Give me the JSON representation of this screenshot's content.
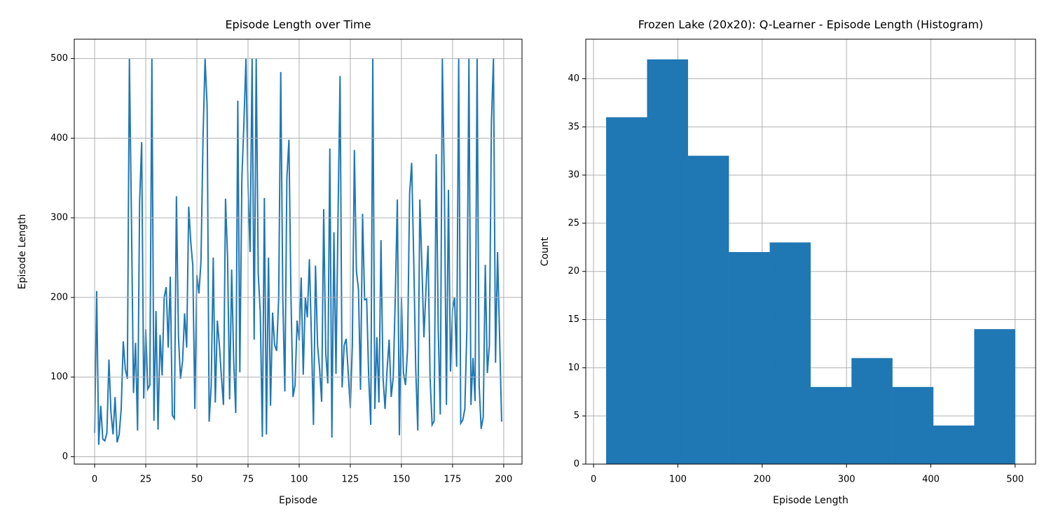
{
  "chart_data": [
    {
      "type": "line",
      "title": "Episode Length over Time",
      "x_label": "Episode",
      "y_label": "Episode Length",
      "color": "#1f77b4",
      "grid": true,
      "x": [
        0,
        1,
        2,
        3,
        4,
        5,
        6,
        7,
        8,
        9,
        10,
        11,
        12,
        13,
        14,
        15,
        16,
        17,
        18,
        19,
        20,
        21,
        22,
        23,
        24,
        25,
        26,
        27,
        28,
        29,
        30,
        31,
        32,
        33,
        34,
        35,
        36,
        37,
        38,
        39,
        40,
        41,
        42,
        43,
        44,
        45,
        46,
        47,
        48,
        49,
        50,
        51,
        52,
        53,
        54,
        55,
        56,
        57,
        58,
        59,
        60,
        61,
        62,
        63,
        64,
        65,
        66,
        67,
        68,
        69,
        70,
        71,
        72,
        73,
        74,
        75,
        76,
        77,
        78,
        79,
        80,
        81,
        82,
        83,
        84,
        85,
        86,
        87,
        88,
        89,
        90,
        91,
        92,
        93,
        94,
        95,
        96,
        97,
        98,
        99,
        100,
        101,
        102,
        103,
        104,
        105,
        106,
        107,
        108,
        109,
        110,
        111,
        112,
        113,
        114,
        115,
        116,
        117,
        118,
        119,
        120,
        121,
        122,
        123,
        124,
        125,
        126,
        127,
        128,
        129,
        130,
        131,
        132,
        133,
        134,
        135,
        136,
        137,
        138,
        139,
        140,
        141,
        142,
        143,
        144,
        145,
        146,
        147,
        148,
        149,
        150,
        151,
        152,
        153,
        154,
        155,
        156,
        157,
        158,
        159,
        160,
        161,
        162,
        163,
        164,
        165,
        166,
        167,
        168,
        169,
        170,
        171,
        172,
        173,
        174,
        175,
        176,
        177,
        178,
        179,
        180,
        181,
        182,
        183,
        184,
        185,
        186,
        187,
        188,
        189,
        190,
        191,
        192,
        193,
        194,
        195,
        196,
        197,
        198,
        199
      ],
      "values": [
        30,
        208,
        15,
        64,
        22,
        20,
        30,
        122,
        55,
        28,
        75,
        18,
        28,
        60,
        145,
        110,
        98,
        500,
        300,
        80,
        143,
        33,
        320,
        395,
        73,
        160,
        85,
        90,
        500,
        45,
        183,
        34,
        153,
        102,
        200,
        213,
        137,
        226,
        52,
        48,
        327,
        150,
        98,
        120,
        180,
        137,
        314,
        270,
        240,
        60,
        228,
        205,
        245,
        400,
        500,
        440,
        44,
        90,
        250,
        68,
        171,
        140,
        100,
        65,
        324,
        250,
        72,
        235,
        120,
        55,
        447,
        106,
        350,
        420,
        500,
        340,
        257,
        500,
        147,
        500,
        230,
        180,
        25,
        325,
        28,
        250,
        64,
        181,
        140,
        133,
        200,
        483,
        200,
        82,
        350,
        398,
        200,
        75,
        90,
        171,
        146,
        225,
        103,
        200,
        175,
        248,
        150,
        40,
        240,
        140,
        110,
        69,
        311,
        130,
        92,
        387,
        24,
        282,
        104,
        300,
        478,
        87,
        140,
        148,
        105,
        61,
        140,
        385,
        233,
        210,
        84,
        305,
        197,
        198,
        100,
        40,
        500,
        60,
        150,
        68,
        272,
        100,
        60,
        110,
        147,
        75,
        100,
        200,
        323,
        27,
        200,
        105,
        90,
        135,
        330,
        369,
        250,
        110,
        33,
        323,
        240,
        150,
        210,
        265,
        100,
        40,
        45,
        380,
        160,
        53,
        500,
        340,
        65,
        335,
        107,
        185,
        200,
        113,
        500,
        42,
        46,
        60,
        160,
        500,
        65,
        124,
        70,
        500,
        90,
        35,
        50,
        241,
        105,
        140,
        420,
        500,
        118,
        257,
        150,
        44
      ],
      "xlim": [
        -9.95,
        208.95
      ],
      "xticks": [
        0,
        25,
        50,
        75,
        100,
        125,
        150,
        175,
        200
      ],
      "ylim": [
        -9.25,
        524.25
      ],
      "yticks": [
        0,
        100,
        200,
        300,
        400,
        500
      ]
    },
    {
      "type": "histogram",
      "title": "Frozen Lake (20x20): Q-Learner - Episode Length (Histogram)",
      "x_label": "Episode Length",
      "y_label": "Count",
      "color": "#1f77b4",
      "grid": true,
      "bins": [
        15,
        63.5,
        112,
        160.5,
        209,
        257.5,
        306,
        354.5,
        403,
        451.5,
        500
      ],
      "values": [
        36,
        42,
        32,
        22,
        23,
        8,
        11,
        8,
        4,
        14
      ],
      "xlim": [
        -9.25,
        524.25
      ],
      "xticks": [
        0,
        100,
        200,
        300,
        400,
        500
      ],
      "ylim": [
        0,
        44.1
      ],
      "yticks": [
        0,
        5,
        10,
        15,
        20,
        25,
        30,
        35,
        40
      ]
    }
  ]
}
